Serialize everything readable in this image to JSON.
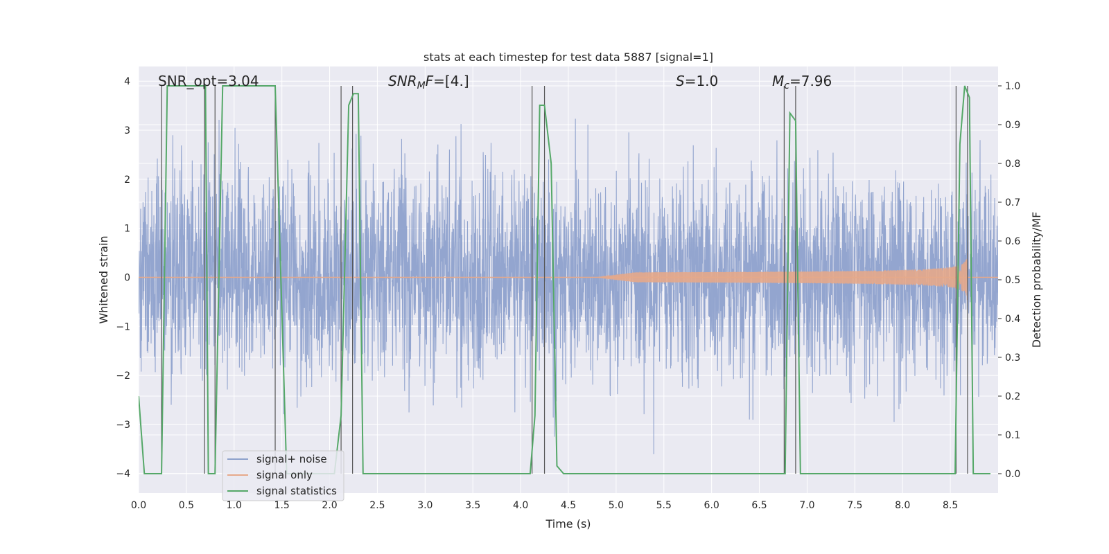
{
  "chart_data": {
    "type": "line",
    "title": "stats at each timestep for test data 5887 [signal=1]",
    "xlabel": "Time (s)",
    "ylabel": "Whitened strain",
    "y2label": "Detection probability/MF",
    "xlim": [
      0.0,
      9.0
    ],
    "ylim": [
      -4.4,
      4.3
    ],
    "y2lim": [
      -0.05,
      1.05
    ],
    "xticks": [
      0.0,
      0.5,
      1.0,
      1.5,
      2.0,
      2.5,
      3.0,
      3.5,
      4.0,
      4.5,
      5.0,
      5.5,
      6.0,
      6.5,
      7.0,
      7.5,
      8.0,
      8.5
    ],
    "xtick_labels": [
      "0.0",
      "0.5",
      "1.0",
      "1.5",
      "2.0",
      "2.5",
      "3.0",
      "3.5",
      "4.0",
      "4.5",
      "5.0",
      "5.5",
      "6.0",
      "6.5",
      "7.0",
      "7.5",
      "8.0",
      "8.5"
    ],
    "yticks": [
      -4,
      -3,
      -2,
      -1,
      0,
      1,
      2,
      3,
      4
    ],
    "ytick_labels": [
      "−4",
      "−3",
      "−2",
      "−1",
      "0",
      "1",
      "2",
      "3",
      "4"
    ],
    "y2ticks": [
      0.0,
      0.1,
      0.2,
      0.3,
      0.4,
      0.5,
      0.6,
      0.7,
      0.8,
      0.9,
      1.0
    ],
    "y2tick_labels": [
      "0.0",
      "0.1",
      "0.2",
      "0.3",
      "0.4",
      "0.5",
      "0.6",
      "0.7",
      "0.8",
      "0.9",
      "1.0"
    ],
    "grid": true,
    "legend_position": "lower-left",
    "annotations": {
      "snr_opt": "SNR_opt=3.04",
      "snr_mf_italic": "SNR",
      "snr_mf_sub": "M",
      "snr_mf_italic2": "F",
      "snr_mf_value": "=[4.]",
      "s_italic": "S",
      "s_value": "=1.0",
      "mc_italic": "M",
      "mc_sub": "c",
      "mc_value": "=7.96"
    },
    "series": [
      {
        "name": "signal+ noise",
        "color": "#8ea1cc",
        "noise_sigma": 1.0,
        "noise_max_abs": 3.9
      },
      {
        "name": "signal only",
        "color": "#dd8452",
        "chirp_start": 4.8,
        "chirp_end": 8.68,
        "chirp_peak_amplitude": 0.55
      },
      {
        "name": "signal statistics",
        "color": "#55a868",
        "x": [
          0.0,
          0.06,
          0.24,
          0.3,
          0.7,
          0.73,
          0.8,
          0.88,
          1.43,
          1.55,
          2.05,
          2.12,
          2.2,
          2.25,
          2.3,
          2.35,
          4.1,
          4.15,
          4.2,
          4.25,
          4.32,
          4.38,
          4.45,
          6.77,
          6.82,
          6.88,
          6.93,
          8.55,
          8.6,
          8.65,
          8.7,
          8.74,
          8.92
        ],
        "y": [
          0.2,
          0.0,
          0.0,
          1.0,
          1.0,
          0.0,
          0.0,
          1.0,
          1.0,
          0.0,
          0.0,
          0.15,
          0.95,
          0.98,
          0.98,
          0.0,
          0.0,
          0.15,
          0.95,
          0.95,
          0.8,
          0.02,
          0.0,
          0.0,
          0.93,
          0.91,
          0.0,
          0.0,
          0.85,
          1.0,
          0.97,
          0.0,
          0.0
        ]
      }
    ],
    "vertical_markers": [
      0.24,
      0.69,
      0.8,
      1.43,
      2.12,
      2.24,
      4.12,
      4.25,
      6.76,
      6.88,
      8.56,
      8.68
    ]
  },
  "legend": {
    "entries": [
      "signal+ noise",
      "signal only",
      "signal statistics"
    ]
  }
}
